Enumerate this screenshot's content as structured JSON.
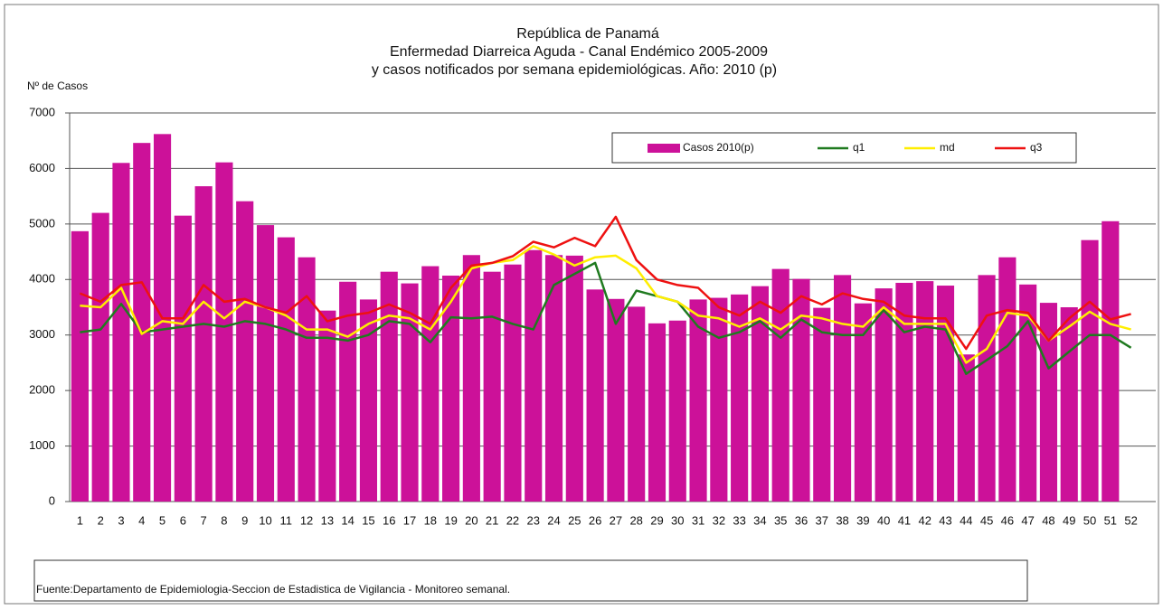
{
  "chart_data": {
    "type": "bar",
    "title": [
      "República de Panamá",
      "Enfermedad Diarreica Aguda - Canal Endémico 2005-2009",
      "y casos notificados por semana epidemiológicas.  Año: 2010 (p)"
    ],
    "y_label": "Nº de Casos",
    "source": "Fuente:Departamento de Epidemiologia-Seccion de Estadistica de Vigilancia - Monitoreo semanal.",
    "categories": [
      "1",
      "2",
      "3",
      "4",
      "5",
      "6",
      "7",
      "8",
      "9",
      "10",
      "11",
      "12",
      "13",
      "14",
      "15",
      "16",
      "17",
      "18",
      "19",
      "20",
      "21",
      "22",
      "23",
      "24",
      "25",
      "26",
      "27",
      "28",
      "29",
      "30",
      "31",
      "32",
      "33",
      "34",
      "35",
      "36",
      "37",
      "38",
      "39",
      "40",
      "41",
      "42",
      "43",
      "44",
      "45",
      "46",
      "47",
      "48",
      "49",
      "50",
      "51",
      "52"
    ],
    "series": [
      {
        "name": "Casos 2010(p)",
        "type": "bar",
        "color": "#cc1199",
        "values": [
          4870,
          5200,
          6100,
          6460,
          6620,
          5150,
          5680,
          6110,
          5410,
          4980,
          4760,
          4400,
          3440,
          3960,
          3640,
          4140,
          3930,
          4240,
          4070,
          4440,
          4140,
          4270,
          4530,
          4440,
          4430,
          3820,
          3650,
          3510,
          3210,
          3260,
          3640,
          3670,
          3730,
          3880,
          4190,
          4010,
          3490,
          4080,
          3570,
          3840,
          3940,
          3970,
          3890,
          2650,
          4080,
          4400,
          3910,
          3580,
          3500,
          4710,
          5050,
          null
        ]
      },
      {
        "name": "q1",
        "type": "line",
        "color": "#1f7a1f",
        "values": [
          3050,
          3100,
          3560,
          3050,
          3100,
          3150,
          3200,
          3150,
          3250,
          3200,
          3100,
          2950,
          2950,
          2900,
          3000,
          3250,
          3200,
          2870,
          3320,
          3300,
          3330,
          3200,
          3100,
          3900,
          4100,
          4300,
          3200,
          3800,
          3700,
          3600,
          3150,
          2950,
          3050,
          3250,
          2950,
          3280,
          3050,
          3000,
          3000,
          3450,
          3050,
          3150,
          3100,
          2300,
          2550,
          2800,
          3250,
          2400,
          2700,
          3000,
          3000,
          2770
        ]
      },
      {
        "name": "md",
        "type": "line",
        "color": "#ffee00",
        "values": [
          3530,
          3500,
          3850,
          3020,
          3250,
          3200,
          3600,
          3300,
          3600,
          3500,
          3350,
          3100,
          3100,
          2970,
          3200,
          3350,
          3300,
          3100,
          3600,
          4200,
          4300,
          4350,
          4600,
          4450,
          4250,
          4400,
          4430,
          4200,
          3700,
          3600,
          3350,
          3300,
          3150,
          3300,
          3100,
          3350,
          3300,
          3200,
          3150,
          3500,
          3200,
          3200,
          3200,
          2500,
          2750,
          3400,
          3350,
          2900,
          3150,
          3420,
          3200,
          3100
        ]
      },
      {
        "name": "q3",
        "type": "line",
        "color": "#ee1111",
        "values": [
          3750,
          3600,
          3900,
          3950,
          3300,
          3300,
          3900,
          3600,
          3650,
          3500,
          3400,
          3700,
          3250,
          3350,
          3400,
          3550,
          3400,
          3200,
          3850,
          4250,
          4300,
          4420,
          4680,
          4580,
          4750,
          4600,
          5130,
          4350,
          4000,
          3900,
          3850,
          3500,
          3350,
          3600,
          3400,
          3700,
          3550,
          3750,
          3650,
          3600,
          3350,
          3300,
          3300,
          2750,
          3350,
          3450,
          3400,
          2900,
          3300,
          3600,
          3280,
          3380
        ]
      }
    ],
    "ylim": [
      0,
      7000
    ],
    "yticks": [
      0,
      1000,
      2000,
      3000,
      4000,
      5000,
      6000,
      7000
    ],
    "grid": true
  }
}
